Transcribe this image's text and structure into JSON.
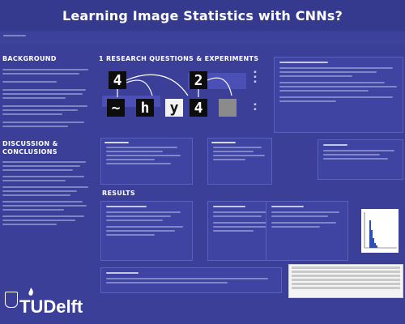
{
  "poster": {
    "title": "Learning Image Statistics with CNNs?",
    "sections": {
      "background": "BACKGROUND",
      "discussion": "DISCUSSION & CONCLUSIONS",
      "research": "1 RESEARCH QUESTIONS & EXPERIMENTS",
      "results": "RESULTS"
    },
    "logo_text": "TUDelft",
    "colors": {
      "background": "#3b3f98",
      "panel": "#3f44a3",
      "text": "#e8eaff"
    }
  }
}
